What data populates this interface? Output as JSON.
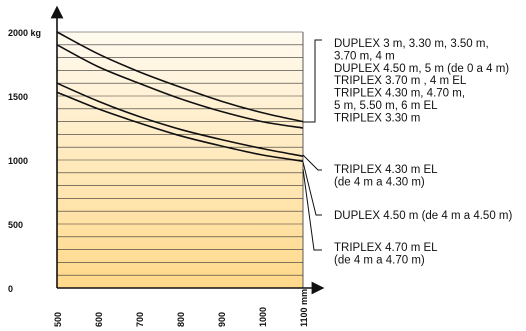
{
  "chart_data": {
    "type": "line",
    "x_axis": {
      "unit": "mm",
      "tick_values": [
        500,
        600,
        700,
        800,
        900,
        1000,
        1100
      ],
      "tick_labels": [
        "500",
        "600",
        "700",
        "800",
        "900",
        "1000",
        "1100 mm"
      ],
      "range": [
        500,
        1100
      ]
    },
    "y_axis": {
      "unit": "kg",
      "tick_values": [
        0,
        500,
        1000,
        1500,
        2000
      ],
      "tick_labels": [
        "0",
        "500",
        "1000",
        "1500",
        "2000 kg"
      ],
      "range": [
        0,
        2000
      ]
    },
    "grid": "horizontal",
    "background_gradient": [
      "#fffaf0",
      "#ffd98a"
    ],
    "series": [
      {
        "name": "DUPLEX 3 m, 3.30 m, 3.50 m, 3.70 m, 4 m / DUPLEX 4.50 m, 5 m (de 0 a 4 m)",
        "x": [
          500,
          600,
          700,
          800,
          900,
          1000,
          1100
        ],
        "y": [
          2000,
          1830,
          1690,
          1570,
          1460,
          1370,
          1300
        ]
      },
      {
        "name": "TRIPLEX 3.70 m, 4 m EL / TRIPLEX 4.30 m, 4.70 m, 5 m, 5.50 m, 6 m EL / TRIPLEX 3.30 m",
        "x": [
          500,
          600,
          700,
          800,
          900,
          1000,
          1100
        ],
        "y": [
          1900,
          1730,
          1600,
          1480,
          1380,
          1300,
          1250
        ]
      },
      {
        "name": "TRIPLEX 4.30 m EL (de 4 m a 4.30 m)",
        "x": [
          500,
          600,
          700,
          800,
          900,
          1000,
          1100
        ],
        "y": [
          1600,
          1460,
          1340,
          1240,
          1160,
          1090,
          1030
        ]
      },
      {
        "name": "DUPLEX 4.50 m (de 4 m a 4.50 m)",
        "x": [
          500,
          600,
          700,
          800,
          900,
          1000,
          1100
        ],
        "y": [
          1530,
          1400,
          1290,
          1190,
          1110,
          1040,
          990
        ]
      }
    ],
    "legend": {
      "groups": [
        {
          "lines": [
            "DUPLEX 3 m, 3.30 m, 3.50 m,",
            "3.70 m, 4 m",
            "DUPLEX 4.50 m, 5 m (de 0 a 4 m)",
            "TRIPLEX 3.70 m , 4 m EL",
            "TRIPLEX 4.30 m, 4.70 m,",
            "5 m, 5.50 m, 6 m EL",
            "TRIPLEX 3.30 m"
          ]
        },
        {
          "lines": [
            "TRIPLEX 4.30 m EL",
            "(de 4 m a 4.30 m)"
          ]
        },
        {
          "lines": [
            "DUPLEX 4.50 m (de 4 m a 4.50 m)"
          ]
        },
        {
          "lines": [
            "TRIPLEX 4.70 m EL",
            "(de 4 m a 4.70 m)"
          ]
        }
      ]
    }
  }
}
